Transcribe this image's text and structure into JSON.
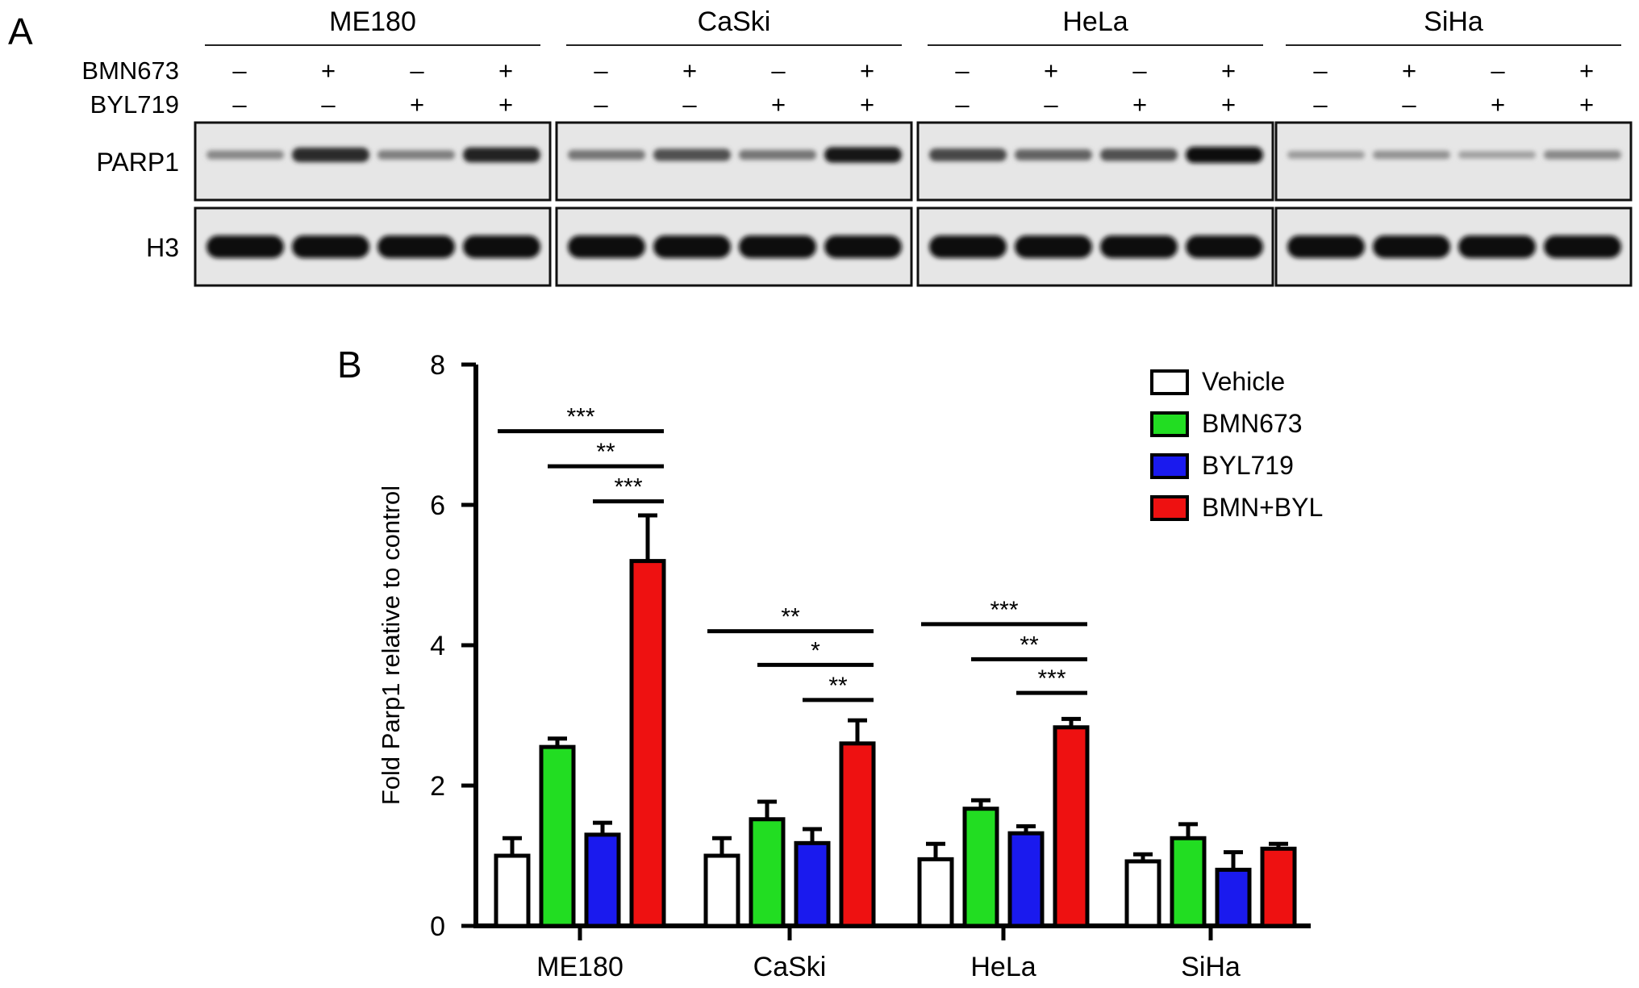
{
  "panelA": {
    "label": "A",
    "cell_lines": [
      "ME180",
      "CaSki",
      "HeLa",
      "SiHa"
    ],
    "treatments": [
      {
        "name": "BMN673",
        "signs": [
          "–",
          "+",
          "–",
          "+"
        ]
      },
      {
        "name": "BYL719",
        "signs": [
          "–",
          "–",
          "+",
          "+"
        ]
      }
    ],
    "blot_rows": [
      {
        "label": "PARP1",
        "intensity": [
          [
            0.35,
            0.85,
            0.4,
            0.9
          ],
          [
            0.45,
            0.65,
            0.45,
            0.95
          ],
          [
            0.7,
            0.55,
            0.65,
            1.0
          ],
          [
            0.25,
            0.3,
            0.22,
            0.35
          ]
        ]
      },
      {
        "label": "H3",
        "intensity": [
          [
            1,
            1,
            1,
            1
          ],
          [
            1,
            1,
            1,
            1
          ],
          [
            1,
            1,
            1,
            1
          ],
          [
            1,
            1,
            1,
            1
          ]
        ]
      }
    ]
  },
  "panelB": {
    "label": "B",
    "legend_position": "top-right"
  },
  "chart_data": {
    "type": "bar",
    "categories": [
      "ME180",
      "CaSki",
      "HeLa",
      "SiHa"
    ],
    "series": [
      {
        "name": "Vehicle",
        "color": "#ffffff",
        "values": [
          1.0,
          1.0,
          0.95,
          0.92
        ],
        "errors": [
          0.25,
          0.25,
          0.22,
          0.1
        ]
      },
      {
        "name": "BMN673",
        "color": "#22dd22",
        "values": [
          2.55,
          1.52,
          1.67,
          1.25
        ],
        "errors": [
          0.12,
          0.25,
          0.12,
          0.2
        ]
      },
      {
        "name": "BYL719",
        "color": "#1a1aee",
        "values": [
          1.3,
          1.18,
          1.32,
          0.8
        ],
        "errors": [
          0.17,
          0.2,
          0.1,
          0.25
        ]
      },
      {
        "name": "BMN+BYL",
        "color": "#ee1111",
        "values": [
          5.2,
          2.6,
          2.83,
          1.1
        ],
        "errors": [
          0.65,
          0.33,
          0.12,
          0.07
        ]
      }
    ],
    "ylabel": "Fold Parp1 relative to control",
    "xlabel": "",
    "ylim": [
      0,
      8
    ],
    "yticks": [
      "0",
      "2",
      "4",
      "6",
      "8"
    ],
    "significance": [
      {
        "category": 0,
        "from": 0,
        "to": 3,
        "y": 7.05,
        "label": "***"
      },
      {
        "category": 0,
        "from": 1,
        "to": 3,
        "y": 6.55,
        "label": "**"
      },
      {
        "category": 0,
        "from": 2,
        "to": 3,
        "y": 6.05,
        "label": "***"
      },
      {
        "category": 1,
        "from": 0,
        "to": 3,
        "y": 4.2,
        "label": "**"
      },
      {
        "category": 1,
        "from": 1,
        "to": 3,
        "y": 3.72,
        "label": "*"
      },
      {
        "category": 1,
        "from": 2,
        "to": 3,
        "y": 3.22,
        "label": "**"
      },
      {
        "category": 2,
        "from": 0,
        "to": 3,
        "y": 4.3,
        "label": "***"
      },
      {
        "category": 2,
        "from": 1,
        "to": 3,
        "y": 3.8,
        "label": "**"
      },
      {
        "category": 2,
        "from": 2,
        "to": 3,
        "y": 3.32,
        "label": "***"
      }
    ]
  }
}
